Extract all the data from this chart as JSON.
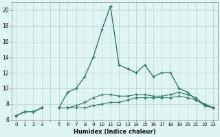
{
  "xlabel": "Humidex (Indice chaleur)",
  "x": [
    0,
    1,
    2,
    3,
    4,
    5,
    6,
    7,
    8,
    9,
    10,
    11,
    12,
    13,
    14,
    15,
    16,
    17,
    18,
    19,
    20,
    21,
    22,
    23
  ],
  "line_main": [
    6.5,
    7.0,
    7.0,
    7.5,
    null,
    7.5,
    9.5,
    10.0,
    11.5,
    14.0,
    17.5,
    20.5,
    13.0,
    12.5,
    12.0,
    13.0,
    11.5,
    12.0,
    12.0,
    10.0,
    9.5,
    8.5,
    8.0,
    7.5
  ],
  "line2": [
    6.5,
    7.0,
    7.0,
    7.5,
    null,
    7.5,
    7.5,
    7.8,
    8.2,
    8.8,
    9.2,
    9.2,
    9.0,
    9.0,
    9.2,
    9.2,
    9.0,
    9.0,
    9.2,
    9.5,
    9.2,
    8.8,
    7.8,
    7.5
  ],
  "line3": [
    6.5,
    7.0,
    7.0,
    7.5,
    null,
    7.5,
    7.5,
    7.5,
    7.5,
    7.8,
    8.0,
    8.2,
    8.2,
    8.5,
    8.8,
    8.8,
    8.8,
    8.8,
    8.8,
    9.0,
    8.8,
    8.5,
    7.8,
    7.5
  ],
  "color": "#2e7d6e",
  "bg_color": "#dff4f4",
  "grid_color": "#c0d8d8",
  "ylim": [
    6,
    21
  ],
  "yticks": [
    6,
    8,
    10,
    12,
    14,
    16,
    18,
    20
  ],
  "xticks": [
    0,
    1,
    2,
    3,
    4,
    5,
    6,
    7,
    8,
    9,
    10,
    11,
    12,
    13,
    14,
    15,
    16,
    17,
    18,
    19,
    20,
    21,
    22,
    23
  ],
  "tick_labels": [
    "0",
    "1",
    "2",
    "3",
    "",
    "5",
    "6",
    "7",
    "8",
    "9",
    "10",
    "11",
    "12",
    "13",
    "14",
    "15",
    "16",
    "17",
    "18",
    "19",
    "20",
    "21",
    "22",
    "23"
  ]
}
